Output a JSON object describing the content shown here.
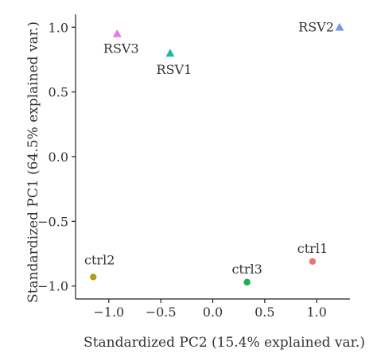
{
  "chart_data": {
    "type": "scatter",
    "title": "",
    "xlabel": "Standardized PC2 (15.4% explained var.)",
    "ylabel": "Standardized PC1 (64.5% explained var.)",
    "xlim": [
      -1.32,
      1.32
    ],
    "ylim": [
      -1.1,
      1.1
    ],
    "xticks": [
      {
        "value": -1.0,
        "label": "−1.0"
      },
      {
        "value": -0.5,
        "label": "−0.5"
      },
      {
        "value": 0.0,
        "label": "0.0"
      },
      {
        "value": 0.5,
        "label": "0.5"
      },
      {
        "value": 1.0,
        "label": "1.0"
      }
    ],
    "yticks": [
      {
        "value": -1.0,
        "label": "−1.0"
      },
      {
        "value": -0.5,
        "label": "−0.5"
      },
      {
        "value": 0.0,
        "label": "0.0"
      },
      {
        "value": 0.5,
        "label": "0.5"
      },
      {
        "value": 1.0,
        "label": "1.0"
      }
    ],
    "grid": false,
    "points": [
      {
        "label": "RSV2",
        "x": 1.22,
        "y": 1.0,
        "shape": "triangle",
        "color": "#6f9be8"
      },
      {
        "label": "RSV3",
        "x": -0.92,
        "y": 0.95,
        "shape": "triangle",
        "color": "#e67ae6"
      },
      {
        "label": "RSV1",
        "x": -0.41,
        "y": 0.8,
        "shape": "triangle",
        "color": "#1fb8a8"
      },
      {
        "label": "ctrl1",
        "x": 0.96,
        "y": -0.81,
        "shape": "circle",
        "color": "#e8756f"
      },
      {
        "label": "ctrl2",
        "x": -1.15,
        "y": -0.93,
        "shape": "circle",
        "color": "#b39a1c"
      },
      {
        "label": "ctrl3",
        "x": 0.33,
        "y": -0.97,
        "shape": "circle",
        "color": "#18b04a"
      }
    ]
  }
}
